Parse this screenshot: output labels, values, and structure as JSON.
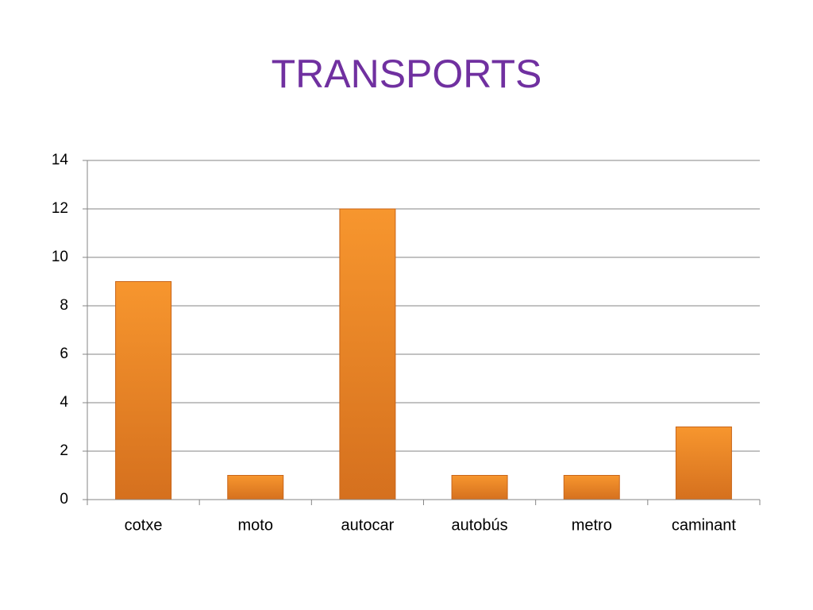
{
  "chart_data": {
    "type": "bar",
    "title": "TRANSPORTS",
    "categories": [
      "cotxe",
      "moto",
      "autocar",
      "autobús",
      "metro",
      "caminant"
    ],
    "values": [
      9,
      1,
      12,
      1,
      1,
      3
    ],
    "color": "#f7962e",
    "ylim": [
      0,
      14
    ],
    "yticks": [
      0,
      2,
      4,
      6,
      8,
      10,
      12,
      14
    ],
    "grid": true
  }
}
